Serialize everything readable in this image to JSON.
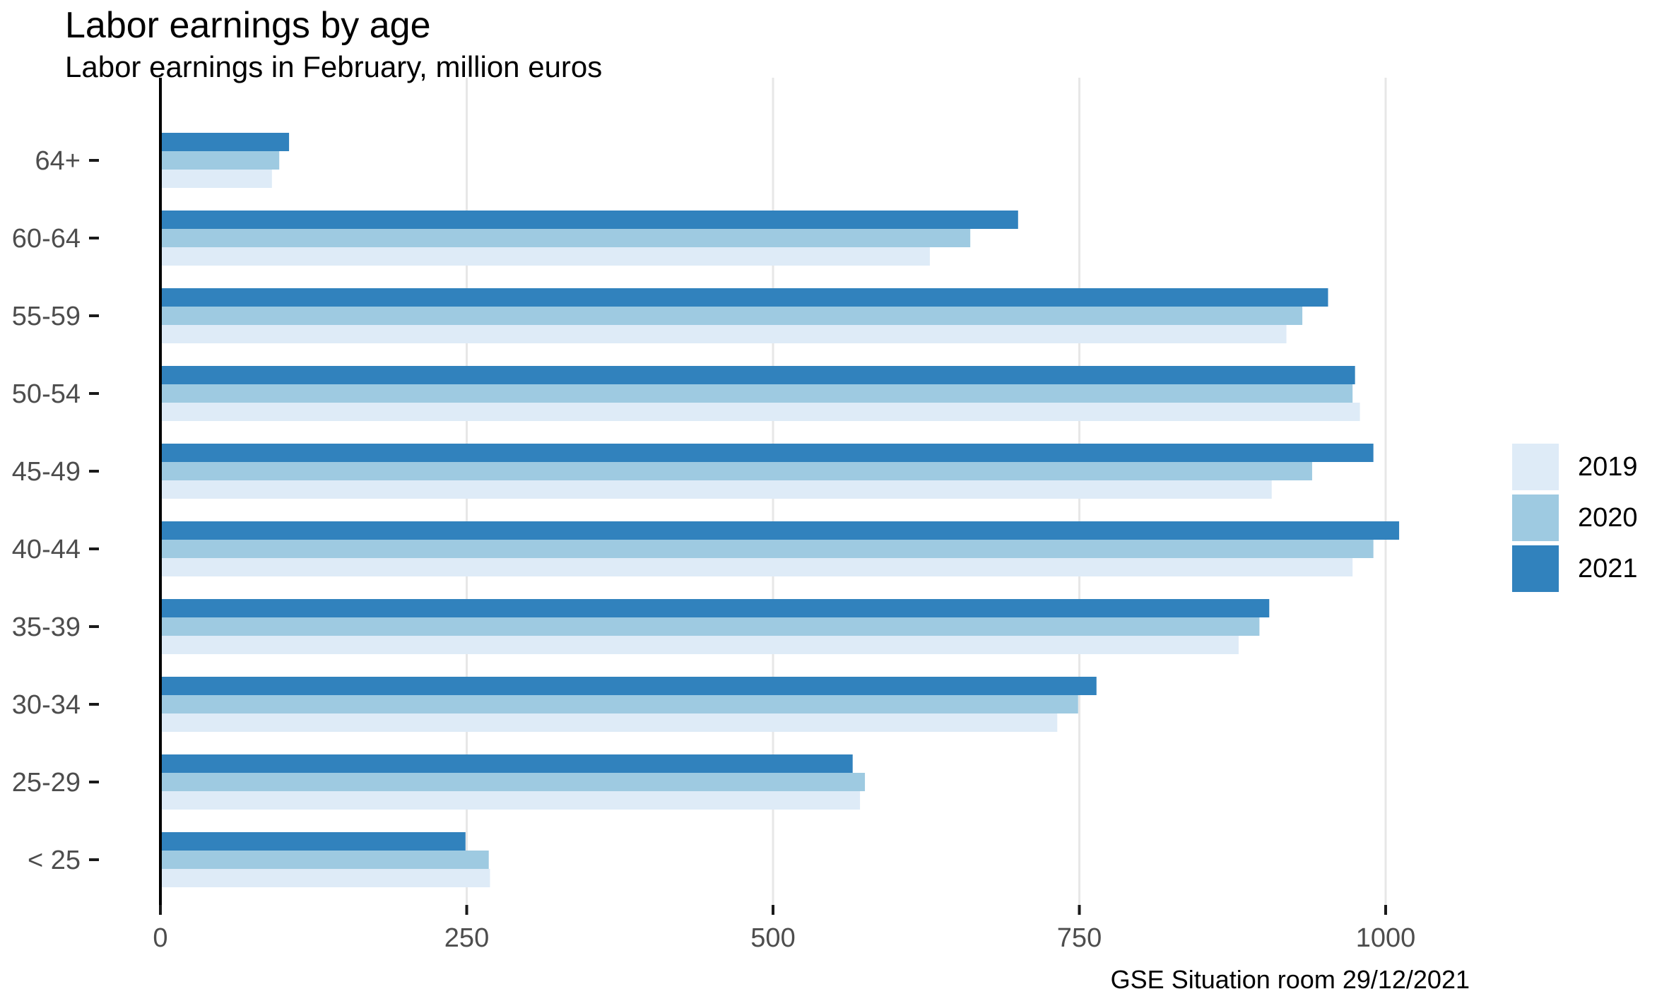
{
  "title": "Labor earnings by age",
  "subtitle": "Labor earnings in February, million euros",
  "caption": "GSE Situation room 29/12/2021",
  "colors": {
    "series_2019": "#DEEBF7",
    "series_2020": "#9ECAE1",
    "series_2021": "#3182BD",
    "grid": "#E7E7E7",
    "axis_text": "#4D4D4D",
    "tick_mark": "#1A1A1A",
    "zero_axis_line": "#000000",
    "background": "#FFFFFF"
  },
  "legend": {
    "position": "right",
    "items": [
      "2019",
      "2020",
      "2021"
    ]
  },
  "chart_data": {
    "type": "bar",
    "orientation": "horizontal",
    "title": "Labor earnings by age",
    "subtitle": "Labor earnings in February, million euros",
    "caption": "GSE Situation room 29/12/2021",
    "xlabel": "",
    "ylabel": "",
    "categories": [
      "64+",
      "60-64",
      "55-59",
      "50-54",
      "45-49",
      "40-44",
      "35-39",
      "30-34",
      "25-29",
      "< 25"
    ],
    "series": [
      {
        "name": "2019",
        "color": "#DEEBF7",
        "values": [
          91,
          628,
          919,
          979,
          907,
          973,
          880,
          732,
          571,
          269
        ]
      },
      {
        "name": "2020",
        "color": "#9ECAE1",
        "values": [
          97,
          661,
          932,
          973,
          940,
          990,
          897,
          749,
          575,
          268
        ]
      },
      {
        "name": "2021",
        "color": "#3182BD",
        "values": [
          105,
          700,
          953,
          975,
          990,
          1011,
          905,
          764,
          565,
          249
        ]
      }
    ],
    "bar_order_top_to_bottom": [
      "2021",
      "2020",
      "2019"
    ],
    "x_ticks": [
      0,
      250,
      500,
      750,
      1000
    ],
    "xlim": [
      0,
      1060
    ],
    "grid": true,
    "legend_position": "right"
  }
}
